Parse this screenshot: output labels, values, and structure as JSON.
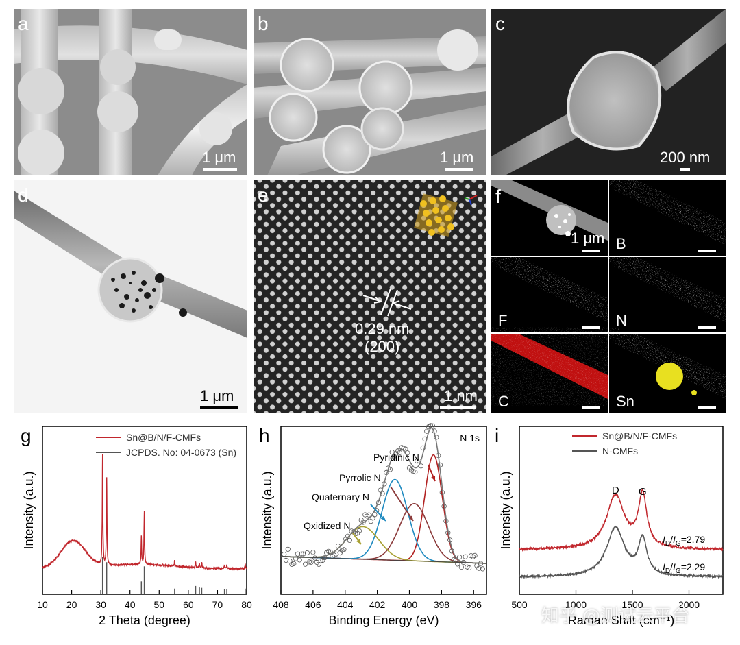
{
  "panels": {
    "a": {
      "label": "a",
      "scale": "1 μm"
    },
    "b": {
      "label": "b",
      "scale": "1 μm"
    },
    "c": {
      "label": "c",
      "scale": "200 nm"
    },
    "d": {
      "label": "d",
      "scale": "1 μm"
    },
    "e": {
      "label": "e",
      "scale": "1 nm",
      "spacing": "0.29 nm",
      "plane": "(200)"
    },
    "f": {
      "label": "f",
      "scale": "1 μm",
      "elements": [
        "B",
        "F",
        "N",
        "C",
        "Sn"
      ]
    }
  },
  "colors": {
    "red": "#c1272d",
    "gray": "#555555",
    "olive": "#a8a032",
    "blue": "#1f8ac0",
    "maroon": "#8b3a3a",
    "darkred": "#b22222",
    "B": "#3cc23c",
    "F": "#c03cc0",
    "N": "#30c0d0",
    "C": "#e01818",
    "Sn": "#d8d020"
  },
  "chart_data": [
    {
      "type": "line",
      "panel": "g",
      "xlabel": "2 Theta (degree)",
      "ylabel": "Intensity (a.u.)",
      "xlim": [
        10,
        80
      ],
      "xticks": [
        10,
        20,
        30,
        40,
        50,
        60,
        70,
        80
      ],
      "legend": "top-right",
      "series": [
        {
          "name": "Sn@B/N/F-CMFs",
          "color": "#c1272d"
        },
        {
          "name": "JCPDS. No: 04-0673 (Sn)",
          "color": "#555555"
        }
      ],
      "ref_peaks": [
        30.6,
        32.0,
        43.9,
        44.9,
        55.3,
        62.5,
        63.8,
        64.6,
        72.4,
        73.2,
        79.5
      ],
      "ref_heights": [
        1.0,
        0.85,
        0.34,
        0.74,
        0.15,
        0.22,
        0.18,
        0.17,
        0.13,
        0.13,
        0.15
      ],
      "measured_peaks": [
        30.6,
        32.0,
        43.9,
        44.9,
        55.3,
        62.5,
        63.8,
        64.6,
        72.4,
        73.2,
        79.5
      ],
      "measured_heights": [
        1.0,
        0.8,
        0.25,
        0.48,
        0.05,
        0.05,
        0.04,
        0.05,
        0.03,
        0.03,
        0.04
      ],
      "broad_hump": {
        "center": 20.5,
        "height": 0.25
      }
    },
    {
      "type": "line",
      "panel": "h",
      "title": "N 1s",
      "xlabel": "Binding Energy (eV)",
      "ylabel": "Intensity (a.u.)",
      "xlim": [
        408,
        395.2
      ],
      "xticks": [
        408,
        406,
        404,
        402,
        400,
        398,
        396
      ],
      "series": [
        {
          "name": "Pyridinic N",
          "center": 398.5,
          "height": 0.82,
          "color": "#b22222"
        },
        {
          "name": "Pyrrolic N",
          "center": 399.7,
          "height": 0.44,
          "color": "#8b3a3a"
        },
        {
          "name": "Quaternary N",
          "center": 400.9,
          "height": 0.62,
          "color": "#1f8ac0"
        },
        {
          "name": "Qxidized N",
          "center": 402.9,
          "height": 0.25,
          "color": "#a8a032"
        }
      ]
    },
    {
      "type": "line",
      "panel": "i",
      "xlabel": "Raman Shift (cm⁻¹)",
      "ylabel": "Intensity (a.u.)",
      "xlim": [
        500,
        2300
      ],
      "xticks": [
        500,
        1000,
        1500,
        2000
      ],
      "legend": "top-right",
      "series": [
        {
          "name": "Sn@B/N/F-CMFs",
          "color": "#c1272d",
          "ratio": "2.79"
        },
        {
          "name": "N-CMFs",
          "color": "#555555",
          "ratio": "2.29"
        }
      ],
      "band_labels": [
        "D",
        "G"
      ],
      "ratio_prefix": "I",
      "ratio_sub": "D",
      "ratio_sub2": "G"
    }
  ],
  "watermark": "知乎 @测试云平台"
}
